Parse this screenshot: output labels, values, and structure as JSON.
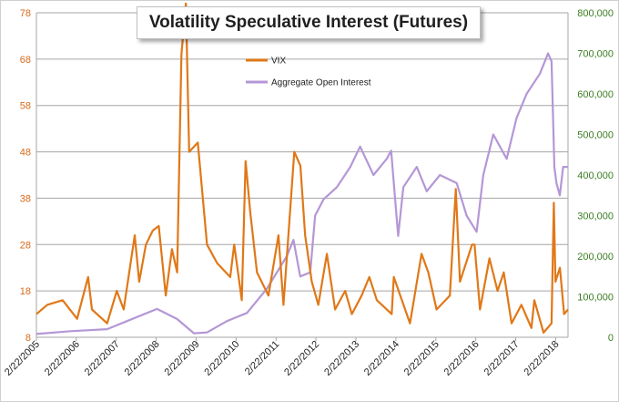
{
  "chart_data": {
    "type": "line",
    "title": "Volatility Speculative Interest (Futures)",
    "x_tick_labels": [
      "2/22/2005",
      "2/22/2006",
      "2/22/2007",
      "2/22/2008",
      "2/22/2009",
      "2/22/2010",
      "2/22/2011",
      "2/22/2012",
      "2/22/2013",
      "2/22/2014",
      "2/22/2015",
      "2/22/2016",
      "2/22/2017",
      "2/22/2018"
    ],
    "x_range": [
      "2005-02-22",
      "2018-06-15"
    ],
    "y_left": {
      "range": [
        8,
        78
      ],
      "ticks": [
        "8",
        "18",
        "28",
        "38",
        "48",
        "58",
        "68",
        "78"
      ],
      "color": "#d86a1a"
    },
    "y_right": {
      "range": [
        0,
        800000
      ],
      "ticks": [
        "0",
        "100,000",
        "200,000",
        "300,000",
        "400,000",
        "500,000",
        "600,000",
        "700,000",
        "800,000"
      ],
      "color": "#3a7d22"
    },
    "grid": true,
    "legend_position": "top-center",
    "series": [
      {
        "name": "VIX",
        "axis": "left",
        "color": "#e07818",
        "points": [
          [
            "2005-02-22",
            13
          ],
          [
            "2005-06-01",
            15
          ],
          [
            "2005-10-20",
            16
          ],
          [
            "2006-03-01",
            12
          ],
          [
            "2006-06-10",
            21
          ],
          [
            "2006-07-15",
            14
          ],
          [
            "2006-12-01",
            11
          ],
          [
            "2007-02-27",
            18
          ],
          [
            "2007-05-01",
            14
          ],
          [
            "2007-08-10",
            30
          ],
          [
            "2007-09-20",
            20
          ],
          [
            "2007-11-20",
            28
          ],
          [
            "2008-01-22",
            31
          ],
          [
            "2008-03-17",
            32
          ],
          [
            "2008-05-20",
            17
          ],
          [
            "2008-07-15",
            27
          ],
          [
            "2008-09-01",
            22
          ],
          [
            "2008-10-10",
            69
          ],
          [
            "2008-11-20",
            80
          ],
          [
            "2008-12-20",
            48
          ],
          [
            "2009-03-09",
            50
          ],
          [
            "2009-06-01",
            28
          ],
          [
            "2009-09-01",
            24
          ],
          [
            "2009-12-30",
            21
          ],
          [
            "2010-02-05",
            28
          ],
          [
            "2010-04-15",
            16
          ],
          [
            "2010-05-20",
            46
          ],
          [
            "2010-07-01",
            35
          ],
          [
            "2010-09-01",
            22
          ],
          [
            "2010-12-15",
            17
          ],
          [
            "2011-03-16",
            30
          ],
          [
            "2011-05-01",
            15
          ],
          [
            "2011-08-08",
            48
          ],
          [
            "2011-10-03",
            45
          ],
          [
            "2011-11-15",
            30
          ],
          [
            "2012-01-15",
            20
          ],
          [
            "2012-03-15",
            15
          ],
          [
            "2012-06-01",
            26
          ],
          [
            "2012-08-15",
            14
          ],
          [
            "2012-11-15",
            18
          ],
          [
            "2013-01-15",
            13
          ],
          [
            "2013-04-15",
            17
          ],
          [
            "2013-06-24",
            21
          ],
          [
            "2013-09-01",
            16
          ],
          [
            "2014-01-15",
            13
          ],
          [
            "2014-02-03",
            21
          ],
          [
            "2014-07-01",
            11
          ],
          [
            "2014-10-15",
            26
          ],
          [
            "2014-12-15",
            22
          ],
          [
            "2015-03-01",
            14
          ],
          [
            "2015-07-01",
            17
          ],
          [
            "2015-08-24",
            40
          ],
          [
            "2015-10-01",
            20
          ],
          [
            "2016-01-20",
            28
          ],
          [
            "2016-02-11",
            28
          ],
          [
            "2016-04-01",
            14
          ],
          [
            "2016-06-27",
            25
          ],
          [
            "2016-09-09",
            18
          ],
          [
            "2016-11-04",
            22
          ],
          [
            "2017-01-15",
            11
          ],
          [
            "2017-04-15",
            15
          ],
          [
            "2017-07-15",
            10
          ],
          [
            "2017-08-11",
            16
          ],
          [
            "2017-11-03",
            9
          ],
          [
            "2018-01-15",
            11
          ],
          [
            "2018-02-05",
            37
          ],
          [
            "2018-02-20",
            20
          ],
          [
            "2018-04-02",
            23
          ],
          [
            "2018-05-10",
            13
          ],
          [
            "2018-06-15",
            14
          ]
        ]
      },
      {
        "name": "Aggregate Open Interest",
        "axis": "right",
        "color": "#b497d6",
        "points": [
          [
            "2005-02-22",
            8000
          ],
          [
            "2006-01-01",
            15000
          ],
          [
            "2006-12-01",
            20000
          ],
          [
            "2007-06-01",
            40000
          ],
          [
            "2008-03-01",
            70000
          ],
          [
            "2008-09-01",
            45000
          ],
          [
            "2009-02-01",
            10000
          ],
          [
            "2009-06-01",
            12000
          ],
          [
            "2009-12-01",
            40000
          ],
          [
            "2010-06-01",
            60000
          ],
          [
            "2010-12-01",
            120000
          ],
          [
            "2011-06-01",
            200000
          ],
          [
            "2011-08-01",
            240000
          ],
          [
            "2011-10-01",
            150000
          ],
          [
            "2012-01-01",
            160000
          ],
          [
            "2012-02-15",
            300000
          ],
          [
            "2012-05-01",
            340000
          ],
          [
            "2012-09-01",
            370000
          ],
          [
            "2013-01-01",
            420000
          ],
          [
            "2013-04-01",
            470000
          ],
          [
            "2013-08-01",
            400000
          ],
          [
            "2013-12-01",
            440000
          ],
          [
            "2014-01-10",
            460000
          ],
          [
            "2014-03-15",
            250000
          ],
          [
            "2014-05-01",
            370000
          ],
          [
            "2014-09-01",
            420000
          ],
          [
            "2014-12-01",
            360000
          ],
          [
            "2015-04-01",
            400000
          ],
          [
            "2015-09-01",
            380000
          ],
          [
            "2015-12-01",
            300000
          ],
          [
            "2016-03-01",
            260000
          ],
          [
            "2016-05-01",
            400000
          ],
          [
            "2016-08-01",
            500000
          ],
          [
            "2016-12-01",
            440000
          ],
          [
            "2017-03-01",
            540000
          ],
          [
            "2017-06-01",
            600000
          ],
          [
            "2017-10-01",
            650000
          ],
          [
            "2017-12-15",
            700000
          ],
          [
            "2018-01-15",
            680000
          ],
          [
            "2018-02-10",
            420000
          ],
          [
            "2018-03-01",
            380000
          ],
          [
            "2018-04-01",
            350000
          ],
          [
            "2018-05-01",
            420000
          ],
          [
            "2018-06-15",
            420000
          ]
        ]
      }
    ]
  }
}
